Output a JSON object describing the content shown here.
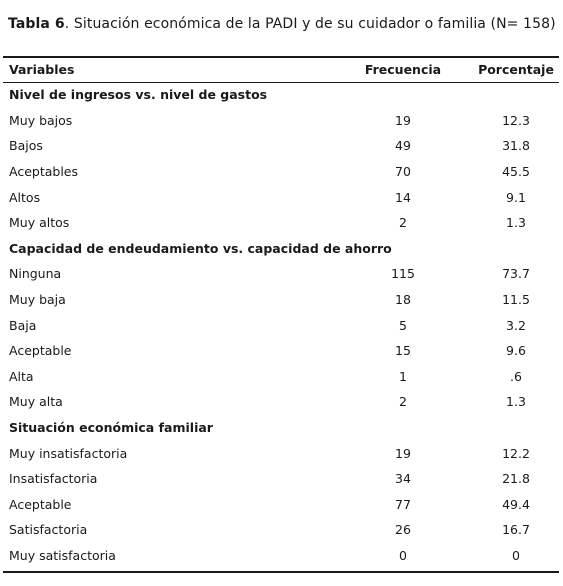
{
  "caption": {
    "label": "Tabla 6",
    "text": ". Situación económica de la PADI y de su cuidador o familia (N= 158)"
  },
  "columns": {
    "variable": "Variables",
    "frequency": "Frecuencia",
    "percentage": "Porcentaje"
  },
  "sections": [
    {
      "title": "Nivel de ingresos vs. nivel de gastos",
      "rows": [
        {
          "label": "Muy bajos",
          "frequency": "19",
          "percentage": "12.3"
        },
        {
          "label": "Bajos",
          "frequency": "49",
          "percentage": "31.8"
        },
        {
          "label": "Aceptables",
          "frequency": "70",
          "percentage": "45.5"
        },
        {
          "label": "Altos",
          "frequency": "14",
          "percentage": "9.1"
        },
        {
          "label": "Muy altos",
          "frequency": "2",
          "percentage": "1.3"
        }
      ]
    },
    {
      "title": "Capacidad de endeudamiento vs. capacidad de ahorro",
      "rows": [
        {
          "label": "Ninguna",
          "frequency": "115",
          "percentage": "73.7"
        },
        {
          "label": "Muy baja",
          "frequency": "18",
          "percentage": "11.5"
        },
        {
          "label": "Baja",
          "frequency": "5",
          "percentage": "3.2"
        },
        {
          "label": "Aceptable",
          "frequency": "15",
          "percentage": "9.6"
        },
        {
          "label": "Alta",
          "frequency": "1",
          "percentage": ".6"
        },
        {
          "label": "Muy alta",
          "frequency": "2",
          "percentage": "1.3"
        }
      ]
    },
    {
      "title": "Situación económica familiar",
      "rows": [
        {
          "label": "Muy insatisfactoria",
          "frequency": "19",
          "percentage": "12.2"
        },
        {
          "label": "Insatisfactoria",
          "frequency": "34",
          "percentage": "21.8"
        },
        {
          "label": "Aceptable",
          "frequency": "77",
          "percentage": "49.4"
        },
        {
          "label": "Satisfactoria",
          "frequency": "26",
          "percentage": "16.7"
        },
        {
          "label": "Muy satisfactoria",
          "frequency": "0",
          "percentage": "0"
        }
      ]
    }
  ]
}
